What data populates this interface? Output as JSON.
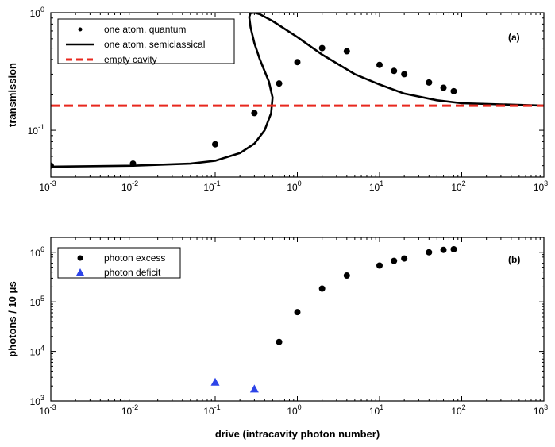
{
  "chart_data": [
    {
      "type": "scatter",
      "panel_label": "(a)",
      "ylabel": "transmission",
      "xscale": "log",
      "yscale": "log",
      "xlim": [
        0.001,
        1000
      ],
      "ylim": [
        0.04,
        1
      ],
      "xticks": [
        0.001,
        0.01,
        0.1,
        1,
        10,
        100,
        1000
      ],
      "xtick_exponents": [
        "-3",
        "-2",
        "-1",
        "0",
        "1",
        "2",
        "3"
      ],
      "yticks": [
        0.1,
        1
      ],
      "ytick_exponents": [
        "-1",
        "0"
      ],
      "legend_position": "top-left",
      "series": [
        {
          "name": "one atom, quantum",
          "kind": "points",
          "color": "#000000",
          "x": [
            0.001,
            0.01,
            0.1,
            0.3,
            0.6,
            1,
            2,
            4,
            10,
            15,
            20,
            40,
            60,
            80
          ],
          "y": [
            0.05,
            0.052,
            0.076,
            0.14,
            0.25,
            0.38,
            0.5,
            0.47,
            0.36,
            0.32,
            0.3,
            0.255,
            0.23,
            0.215
          ]
        },
        {
          "name": "one atom, semiclassical",
          "kind": "line",
          "color": "#000000",
          "x": [
            0.001,
            0.01,
            0.05,
            0.1,
            0.2,
            0.3,
            0.4,
            0.48,
            0.5,
            0.45,
            0.35,
            0.3,
            0.27,
            0.26,
            0.27,
            0.3,
            0.35,
            0.5,
            1,
            2,
            5,
            10,
            20,
            50,
            100,
            1000
          ],
          "y": [
            0.049,
            0.05,
            0.052,
            0.055,
            0.064,
            0.077,
            0.1,
            0.14,
            0.19,
            0.26,
            0.4,
            0.55,
            0.75,
            0.92,
            0.99,
            1.0,
            0.97,
            0.85,
            0.62,
            0.44,
            0.3,
            0.245,
            0.205,
            0.18,
            0.17,
            0.162
          ]
        },
        {
          "name": "empty cavity",
          "kind": "dashed-line",
          "color": "#e8281e",
          "x": [
            0.001,
            1000
          ],
          "y": [
            0.162,
            0.162
          ]
        }
      ]
    },
    {
      "type": "scatter",
      "panel_label": "(b)",
      "ylabel": "photons / 10 μs",
      "xlabel": "drive (intracavity photon number)",
      "xscale": "log",
      "yscale": "log",
      "xlim": [
        0.001,
        1000
      ],
      "ylim": [
        1000,
        2000000
      ],
      "xticks": [
        0.001,
        0.01,
        0.1,
        1,
        10,
        100,
        1000
      ],
      "xtick_exponents": [
        "-3",
        "-2",
        "-1",
        "0",
        "1",
        "2",
        "3"
      ],
      "yticks": [
        1000,
        10000,
        100000,
        1000000
      ],
      "ytick_exponents": [
        "3",
        "4",
        "5",
        "6"
      ],
      "legend_position": "top-left",
      "series": [
        {
          "name": "photon excess",
          "kind": "points",
          "marker": "circle",
          "color": "#000000",
          "x": [
            0.6,
            1,
            2,
            4,
            10,
            15,
            20,
            40,
            60,
            80
          ],
          "y": [
            15500,
            62000,
            185000,
            340000,
            540000,
            670000,
            750000,
            1000000,
            1120000,
            1150000
          ]
        },
        {
          "name": "photon deficit",
          "kind": "points",
          "marker": "triangle",
          "color": "#2d44e8",
          "x": [
            0.1,
            0.3
          ],
          "y": [
            2400,
            1750
          ]
        }
      ]
    }
  ]
}
